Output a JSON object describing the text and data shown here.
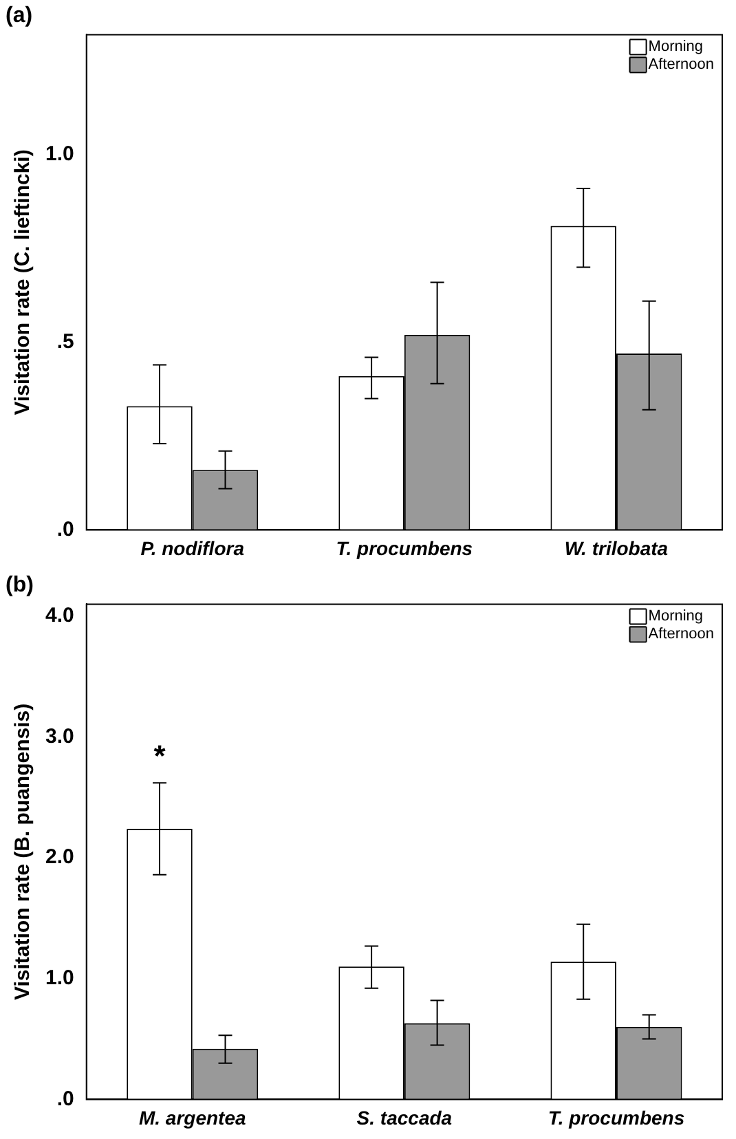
{
  "chart_data": [
    {
      "type": "bar",
      "title": "(a)",
      "ylabel": "Visitation rate (C. lieftincki)",
      "categories": [
        "P. nodiflora",
        "T. procumbens",
        "W. trilobata"
      ],
      "series": [
        {
          "name": "Morning",
          "color": "#ffffff",
          "values": [
            0.33,
            0.41,
            0.81
          ],
          "errors": [
            [
              0.23,
              0.44
            ],
            [
              0.35,
              0.46
            ],
            [
              0.7,
              0.91
            ]
          ]
        },
        {
          "name": "Afternoon",
          "color": "#999999",
          "values": [
            0.16,
            0.52,
            0.47
          ],
          "errors": [
            [
              0.11,
              0.21
            ],
            [
              0.39,
              0.66
            ],
            [
              0.32,
              0.61
            ]
          ]
        }
      ],
      "ylim": [
        0,
        1.32
      ],
      "yticks": [
        {
          "value": 0,
          "label": ".0"
        },
        {
          "value": 0.5,
          "label": ".5"
        },
        {
          "value": 1.0,
          "label": "1.0"
        }
      ],
      "grid": false,
      "legend": "top right"
    },
    {
      "type": "bar",
      "title": "(b)",
      "ylabel": "Visitation rate (B. puangensis)",
      "categories": [
        "M. argentea",
        "S. taccada",
        "T. procumbens"
      ],
      "series": [
        {
          "name": "Morning",
          "color": "#ffffff",
          "values": [
            2.24,
            1.1,
            1.14
          ],
          "errors": [
            [
              1.86,
              2.62
            ],
            [
              0.92,
              1.27
            ],
            [
              0.83,
              1.45
            ]
          ]
        },
        {
          "name": "Afternoon",
          "color": "#999999",
          "values": [
            0.42,
            0.63,
            0.6
          ],
          "errors": [
            [
              0.3,
              0.53
            ],
            [
              0.45,
              0.82
            ],
            [
              0.5,
              0.7
            ]
          ]
        }
      ],
      "ylim": [
        0,
        4.1
      ],
      "yticks": [
        {
          "value": 0,
          "label": ".0"
        },
        {
          "value": 1,
          "label": "1.0"
        },
        {
          "value": 2,
          "label": "2.0"
        },
        {
          "value": 3,
          "label": "3.0"
        },
        {
          "value": 4,
          "label": "4.0"
        }
      ],
      "grid": false,
      "legend": "top right",
      "annotations": [
        "*"
      ]
    }
  ]
}
